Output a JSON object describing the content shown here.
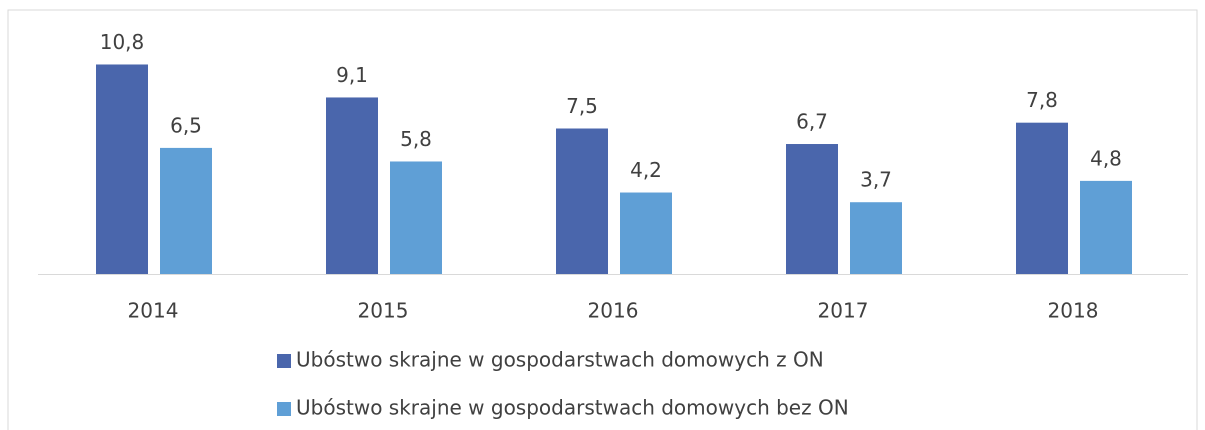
{
  "chart_data": {
    "type": "bar",
    "categories": [
      "2014",
      "2015",
      "2016",
      "2017",
      "2018"
    ],
    "series": [
      {
        "name": "Ubóstwo skrajne w gospodarstwach domowych z ON",
        "color": "#4a66ac",
        "values": [
          10.8,
          9.1,
          7.5,
          6.7,
          7.8
        ],
        "value_labels": [
          "10,8",
          "9,1",
          "7,5",
          "6,7",
          "7,8"
        ]
      },
      {
        "name": "Ubóstwo skrajne w gospodarstwach domowych bez ON",
        "color": "#5f9fd6",
        "values": [
          6.5,
          5.8,
          4.2,
          3.7,
          4.8
        ],
        "value_labels": [
          "6,5",
          "5,8",
          "4,2",
          "3,7",
          "4,8"
        ]
      }
    ],
    "legend": "bottom"
  }
}
